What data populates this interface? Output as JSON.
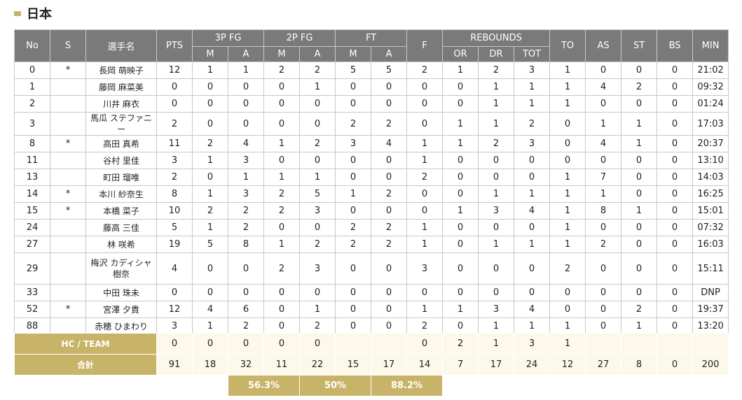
{
  "team_name": "日本",
  "headers": {
    "no": "No",
    "s": "S",
    "name": "選手名",
    "pts": "PTS",
    "fg3": "3P FG",
    "fg2": "2P FG",
    "ft": "FT",
    "m": "M",
    "a": "A",
    "f": "F",
    "rebounds": "REBOUNDS",
    "or": "OR",
    "dr": "DR",
    "tot": "TOT",
    "to": "TO",
    "as": "AS",
    "st": "ST",
    "bs": "BS",
    "min": "MIN"
  },
  "players": [
    {
      "no": "0",
      "s": "*",
      "name": "長岡 萌映子",
      "pts": "12",
      "fg3m": "1",
      "fg3a": "1",
      "fg2m": "2",
      "fg2a": "2",
      "ftm": "5",
      "fta": "5",
      "f": "2",
      "or": "1",
      "dr": "2",
      "tot": "3",
      "to": "1",
      "as": "0",
      "st": "0",
      "bs": "0",
      "min": "21:02"
    },
    {
      "no": "1",
      "s": "",
      "name": "藤岡 麻菜美",
      "pts": "0",
      "fg3m": "0",
      "fg3a": "0",
      "fg2m": "0",
      "fg2a": "1",
      "ftm": "0",
      "fta": "0",
      "f": "0",
      "or": "0",
      "dr": "1",
      "tot": "1",
      "to": "1",
      "as": "4",
      "st": "2",
      "bs": "0",
      "min": "09:32"
    },
    {
      "no": "2",
      "s": "",
      "name": "川井 麻衣",
      "pts": "0",
      "fg3m": "0",
      "fg3a": "0",
      "fg2m": "0",
      "fg2a": "0",
      "ftm": "0",
      "fta": "0",
      "f": "0",
      "or": "0",
      "dr": "1",
      "tot": "1",
      "to": "1",
      "as": "0",
      "st": "0",
      "bs": "0",
      "min": "01:24"
    },
    {
      "no": "3",
      "s": "",
      "name": "馬瓜 ステファニー",
      "pts": "2",
      "fg3m": "0",
      "fg3a": "0",
      "fg2m": "0",
      "fg2a": "0",
      "ftm": "2",
      "fta": "2",
      "f": "0",
      "or": "1",
      "dr": "1",
      "tot": "2",
      "to": "0",
      "as": "1",
      "st": "1",
      "bs": "0",
      "min": "17:03"
    },
    {
      "no": "8",
      "s": "*",
      "name": "高田 真希",
      "pts": "11",
      "fg3m": "2",
      "fg3a": "4",
      "fg2m": "1",
      "fg2a": "2",
      "ftm": "3",
      "fta": "4",
      "f": "1",
      "or": "1",
      "dr": "2",
      "tot": "3",
      "to": "0",
      "as": "4",
      "st": "1",
      "bs": "0",
      "min": "20:37"
    },
    {
      "no": "11",
      "s": "",
      "name": "谷村 里佳",
      "pts": "3",
      "fg3m": "1",
      "fg3a": "3",
      "fg2m": "0",
      "fg2a": "0",
      "ftm": "0",
      "fta": "0",
      "f": "1",
      "or": "0",
      "dr": "0",
      "tot": "0",
      "to": "0",
      "as": "0",
      "st": "0",
      "bs": "0",
      "min": "13:10"
    },
    {
      "no": "13",
      "s": "",
      "name": "町田 瑠唯",
      "pts": "2",
      "fg3m": "0",
      "fg3a": "1",
      "fg2m": "1",
      "fg2a": "1",
      "ftm": "0",
      "fta": "0",
      "f": "2",
      "or": "0",
      "dr": "0",
      "tot": "0",
      "to": "1",
      "as": "7",
      "st": "0",
      "bs": "0",
      "min": "14:03"
    },
    {
      "no": "14",
      "s": "*",
      "name": "本川 紗奈生",
      "pts": "8",
      "fg3m": "1",
      "fg3a": "3",
      "fg2m": "2",
      "fg2a": "5",
      "ftm": "1",
      "fta": "2",
      "f": "0",
      "or": "0",
      "dr": "1",
      "tot": "1",
      "to": "1",
      "as": "1",
      "st": "0",
      "bs": "0",
      "min": "16:25"
    },
    {
      "no": "15",
      "s": "*",
      "name": "本橋 菜子",
      "pts": "10",
      "fg3m": "2",
      "fg3a": "2",
      "fg2m": "2",
      "fg2a": "3",
      "ftm": "0",
      "fta": "0",
      "f": "0",
      "or": "1",
      "dr": "3",
      "tot": "4",
      "to": "1",
      "as": "8",
      "st": "1",
      "bs": "0",
      "min": "15:01"
    },
    {
      "no": "24",
      "s": "",
      "name": "藤高 三佳",
      "pts": "5",
      "fg3m": "1",
      "fg3a": "2",
      "fg2m": "0",
      "fg2a": "0",
      "ftm": "2",
      "fta": "2",
      "f": "1",
      "or": "0",
      "dr": "0",
      "tot": "0",
      "to": "1",
      "as": "0",
      "st": "0",
      "bs": "0",
      "min": "07:32"
    },
    {
      "no": "27",
      "s": "",
      "name": "林 咲希",
      "pts": "19",
      "fg3m": "5",
      "fg3a": "8",
      "fg2m": "1",
      "fg2a": "2",
      "ftm": "2",
      "fta": "2",
      "f": "1",
      "or": "0",
      "dr": "1",
      "tot": "1",
      "to": "1",
      "as": "2",
      "st": "0",
      "bs": "0",
      "min": "16:03"
    },
    {
      "no": "29",
      "s": "",
      "name": "梅沢 カディシャ樹奈",
      "pts": "4",
      "fg3m": "0",
      "fg3a": "0",
      "fg2m": "2",
      "fg2a": "3",
      "ftm": "0",
      "fta": "0",
      "f": "3",
      "or": "0",
      "dr": "0",
      "tot": "0",
      "to": "2",
      "as": "0",
      "st": "0",
      "bs": "0",
      "min": "15:11"
    },
    {
      "no": "33",
      "s": "",
      "name": "中田 珠未",
      "pts": "0",
      "fg3m": "0",
      "fg3a": "0",
      "fg2m": "0",
      "fg2a": "0",
      "ftm": "0",
      "fta": "0",
      "f": "0",
      "or": "0",
      "dr": "0",
      "tot": "0",
      "to": "0",
      "as": "0",
      "st": "0",
      "bs": "0",
      "min": "DNP"
    },
    {
      "no": "52",
      "s": "*",
      "name": "宮澤 夕貴",
      "pts": "12",
      "fg3m": "4",
      "fg3a": "6",
      "fg2m": "0",
      "fg2a": "1",
      "ftm": "0",
      "fta": "0",
      "f": "1",
      "or": "1",
      "dr": "3",
      "tot": "4",
      "to": "0",
      "as": "0",
      "st": "2",
      "bs": "0",
      "min": "19:37"
    },
    {
      "no": "88",
      "s": "",
      "name": "赤穂 ひまわり",
      "pts": "3",
      "fg3m": "1",
      "fg3a": "2",
      "fg2m": "0",
      "fg2a": "2",
      "ftm": "0",
      "fta": "0",
      "f": "2",
      "or": "0",
      "dr": "1",
      "tot": "1",
      "to": "1",
      "as": "0",
      "st": "1",
      "bs": "0",
      "min": "13:20"
    }
  ],
  "hc_team": {
    "label": "HC / TEAM",
    "pts": "0",
    "fg3m": "0",
    "fg3a": "0",
    "fg2m": "0",
    "fg2a": "0",
    "ftm": "",
    "fta": "",
    "f": "0",
    "or": "2",
    "dr": "1",
    "tot": "3",
    "to": "1",
    "as": "",
    "st": "",
    "bs": "",
    "min": ""
  },
  "total": {
    "label": "合計",
    "pts": "91",
    "fg3m": "18",
    "fg3a": "32",
    "fg2m": "11",
    "fg2a": "22",
    "ftm": "15",
    "fta": "17",
    "f": "14",
    "or": "7",
    "dr": "17",
    "tot": "24",
    "to": "12",
    "as": "27",
    "st": "8",
    "bs": "0",
    "min": "200"
  },
  "percentages": {
    "fg3": "56.3%",
    "fg2": "50%",
    "ft": "88.2%"
  }
}
